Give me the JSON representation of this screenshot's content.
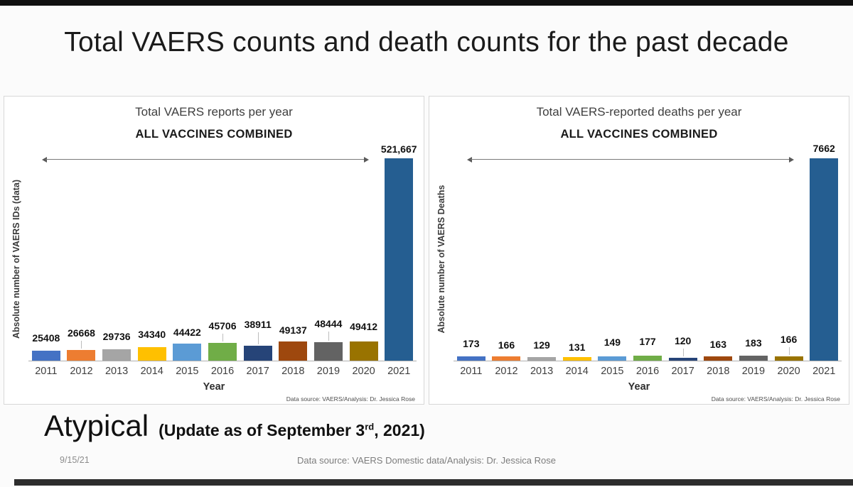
{
  "slide": {
    "title": "Total VAERS counts and death counts for the past decade"
  },
  "bar_colors": [
    "#4472C4",
    "#ED7D31",
    "#A5A5A5",
    "#FFC000",
    "#5B9BD5",
    "#70AD47",
    "#264478",
    "#9E480E",
    "#636363",
    "#997300",
    "#255E91"
  ],
  "chart_data": [
    {
      "type": "bar",
      "title": "Total VAERS reports per year",
      "xlabel": "Year",
      "ylabel": "Absolute number of VAERS IDs (data)",
      "categories": [
        "2011",
        "2012",
        "2013",
        "2014",
        "2015",
        "2016",
        "2017",
        "2018",
        "2019",
        "2020",
        "2021"
      ],
      "values": [
        25408,
        26668,
        29736,
        34340,
        44422,
        45706,
        38911,
        49137,
        48444,
        49412,
        521667
      ],
      "value_labels": [
        "25408",
        "26668",
        "29736",
        "34340",
        "44422",
        "45706",
        "38911",
        "49137",
        "48444",
        "49412",
        "521,667"
      ],
      "label_offsets": [
        10,
        16,
        10,
        10,
        8,
        16,
        22,
        8,
        18,
        13,
        5
      ],
      "annotation": "ALL VACCINES COMBINED",
      "source_note": "Data source: VAERS/Analysis: Dr. Jessica Rose",
      "ylim": [
        0,
        521667
      ],
      "grid": false,
      "legend": "none"
    },
    {
      "type": "bar",
      "title": "Total VAERS-reported deaths per year",
      "xlabel": "Year",
      "ylabel": "Absolute number of VAERS Deaths",
      "categories": [
        "2011",
        "2012",
        "2013",
        "2014",
        "2015",
        "2016",
        "2017",
        "2018",
        "2019",
        "2020",
        "2021"
      ],
      "values": [
        173,
        166,
        129,
        131,
        149,
        177,
        120,
        163,
        183,
        166,
        7662
      ],
      "value_labels": [
        "173",
        "166",
        "129",
        "131",
        "149",
        "177",
        "120",
        "163",
        "183",
        "166",
        "7662"
      ],
      "label_offsets": [
        10,
        8,
        9,
        6,
        12,
        12,
        16,
        9,
        10,
        16,
        6
      ],
      "annotation": "ALL VACCINES COMBINED",
      "source_note": "Data source: VAERS/Analysis: Dr. Jessica Rose",
      "ylim": [
        0,
        7662
      ],
      "grid": false,
      "legend": "none"
    }
  ],
  "footer": {
    "heading": "Atypical",
    "update_prefix": "(Update as of September 3",
    "update_sup": "rd",
    "update_suffix": ", 2021)",
    "date_stamp": "9/15/21",
    "source": "Data source: VAERS Domestic data/Analysis: Dr. Jessica Rose"
  }
}
